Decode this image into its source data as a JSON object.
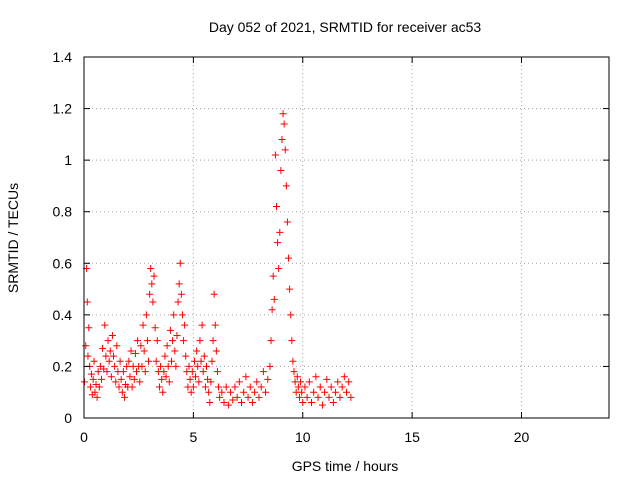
{
  "chart_data": {
    "type": "scatter",
    "title": "Day 052 of 2021, SRMTID for receiver ac53",
    "xlabel": "GPS time / hours",
    "ylabel": "SRMTID / TECUs",
    "xlim": [
      0,
      24
    ],
    "ylim": [
      0,
      1.4
    ],
    "xticks": [
      0,
      5,
      10,
      15,
      20
    ],
    "yticks": [
      0,
      0.2,
      0.4,
      0.6,
      0.8,
      1.0,
      1.2,
      1.4
    ],
    "xtick_labels": [
      "0",
      "5",
      "10",
      "15",
      "20"
    ],
    "ytick_labels": [
      "0",
      "0.2",
      "0.4",
      "0.6",
      "0.8",
      "1",
      "1.2",
      "1.4"
    ],
    "grid": true,
    "marker": "+",
    "color": "#ff0000",
    "series": [
      {
        "name": "ac53",
        "points": [
          [
            0.02,
            0.14
          ],
          [
            0.08,
            0.28
          ],
          [
            0.12,
            0.58
          ],
          [
            0.15,
            0.45
          ],
          [
            0.18,
            0.24
          ],
          [
            0.22,
            0.35
          ],
          [
            0.26,
            0.2
          ],
          [
            0.3,
            0.12
          ],
          [
            0.34,
            0.17
          ],
          [
            0.38,
            0.09
          ],
          [
            0.42,
            0.15
          ],
          [
            0.46,
            0.22
          ],
          [
            0.5,
            0.1
          ],
          [
            0.55,
            0.13
          ],
          [
            0.6,
            0.08
          ],
          [
            0.65,
            0.18
          ],
          [
            0.7,
            0.12
          ],
          [
            0.75,
            0.2
          ],
          [
            0.8,
            0.15
          ],
          [
            0.85,
            0.27
          ],
          [
            0.9,
            0.19
          ],
          [
            0.95,
            0.36
          ],
          [
            1.0,
            0.24
          ],
          [
            1.05,
            0.18
          ],
          [
            1.1,
            0.3
          ],
          [
            1.15,
            0.22
          ],
          [
            1.2,
            0.26
          ],
          [
            1.25,
            0.16
          ],
          [
            1.3,
            0.32
          ],
          [
            1.35,
            0.24
          ],
          [
            1.4,
            0.2
          ],
          [
            1.45,
            0.14
          ],
          [
            1.5,
            0.28
          ],
          [
            1.55,
            0.18
          ],
          [
            1.6,
            0.12
          ],
          [
            1.65,
            0.22
          ],
          [
            1.7,
            0.15
          ],
          [
            1.75,
            0.1
          ],
          [
            1.8,
            0.18
          ],
          [
            1.85,
            0.08
          ],
          [
            1.9,
            0.13
          ],
          [
            1.95,
            0.2
          ],
          [
            2.0,
            0.12
          ],
          [
            2.05,
            0.22
          ],
          [
            2.1,
            0.16
          ],
          [
            2.15,
            0.26
          ],
          [
            2.2,
            0.12
          ],
          [
            2.25,
            0.2
          ],
          [
            2.3,
            0.15
          ],
          [
            2.35,
            0.25
          ],
          [
            2.4,
            0.18
          ],
          [
            2.45,
            0.3
          ],
          [
            2.5,
            0.2
          ],
          [
            2.55,
            0.14
          ],
          [
            2.6,
            0.28
          ],
          [
            2.65,
            0.2
          ],
          [
            2.7,
            0.36
          ],
          [
            2.75,
            0.26
          ],
          [
            2.8,
            0.18
          ],
          [
            2.85,
            0.4
          ],
          [
            2.9,
            0.3
          ],
          [
            2.95,
            0.22
          ],
          [
            3.0,
            0.48
          ],
          [
            3.05,
            0.58
          ],
          [
            3.1,
            0.52
          ],
          [
            3.15,
            0.45
          ],
          [
            3.2,
            0.55
          ],
          [
            3.25,
            0.35
          ],
          [
            3.3,
            0.22
          ],
          [
            3.35,
            0.3
          ],
          [
            3.4,
            0.18
          ],
          [
            3.45,
            0.12
          ],
          [
            3.5,
            0.2
          ],
          [
            3.55,
            0.15
          ],
          [
            3.6,
            0.1
          ],
          [
            3.65,
            0.18
          ],
          [
            3.7,
            0.24
          ],
          [
            3.75,
            0.16
          ],
          [
            3.8,
            0.28
          ],
          [
            3.85,
            0.2
          ],
          [
            3.9,
            0.14
          ],
          [
            3.95,
            0.34
          ],
          [
            4.0,
            0.22
          ],
          [
            4.05,
            0.3
          ],
          [
            4.1,
            0.4
          ],
          [
            4.15,
            0.26
          ],
          [
            4.2,
            0.2
          ],
          [
            4.25,
            0.32
          ],
          [
            4.3,
            0.45
          ],
          [
            4.35,
            0.52
          ],
          [
            4.4,
            0.6
          ],
          [
            4.45,
            0.48
          ],
          [
            4.5,
            0.4
          ],
          [
            4.55,
            0.3
          ],
          [
            4.6,
            0.36
          ],
          [
            4.65,
            0.24
          ],
          [
            4.7,
            0.18
          ],
          [
            4.75,
            0.12
          ],
          [
            4.8,
            0.2
          ],
          [
            4.85,
            0.15
          ],
          [
            4.9,
            0.1
          ],
          [
            4.95,
            0.18
          ],
          [
            5.0,
            0.12
          ],
          [
            5.05,
            0.22
          ],
          [
            5.1,
            0.16
          ],
          [
            5.15,
            0.26
          ],
          [
            5.2,
            0.2
          ],
          [
            5.25,
            0.14
          ],
          [
            5.3,
            0.3
          ],
          [
            5.35,
            0.22
          ],
          [
            5.4,
            0.36
          ],
          [
            5.45,
            0.18
          ],
          [
            5.5,
            0.24
          ],
          [
            5.55,
            0.12
          ],
          [
            5.6,
            0.2
          ],
          [
            5.65,
            0.15
          ],
          [
            5.7,
            0.1
          ],
          [
            5.75,
            0.06
          ],
          [
            5.8,
            0.14
          ],
          [
            5.85,
            0.22
          ],
          [
            5.9,
            0.3
          ],
          [
            5.95,
            0.48
          ],
          [
            6.0,
            0.36
          ],
          [
            6.05,
            0.26
          ],
          [
            6.1,
            0.18
          ],
          [
            6.15,
            0.12
          ],
          [
            6.2,
            0.08
          ],
          [
            6.3,
            0.1
          ],
          [
            6.4,
            0.06
          ],
          [
            6.5,
            0.12
          ],
          [
            6.6,
            0.05
          ],
          [
            6.7,
            0.1
          ],
          [
            6.8,
            0.07
          ],
          [
            6.9,
            0.12
          ],
          [
            7.0,
            0.08
          ],
          [
            7.1,
            0.14
          ],
          [
            7.2,
            0.06
          ],
          [
            7.3,
            0.1
          ],
          [
            7.4,
            0.16
          ],
          [
            7.5,
            0.08
          ],
          [
            7.6,
            0.12
          ],
          [
            7.7,
            0.06
          ],
          [
            7.8,
            0.1
          ],
          [
            7.9,
            0.14
          ],
          [
            8.0,
            0.08
          ],
          [
            8.1,
            0.12
          ],
          [
            8.2,
            0.18
          ],
          [
            8.3,
            0.1
          ],
          [
            8.4,
            0.15
          ],
          [
            8.5,
            0.2
          ],
          [
            8.55,
            0.3
          ],
          [
            8.6,
            0.42
          ],
          [
            8.65,
            0.55
          ],
          [
            8.7,
            0.46
          ],
          [
            8.75,
            1.02
          ],
          [
            8.8,
            0.82
          ],
          [
            8.85,
            0.68
          ],
          [
            8.9,
            0.58
          ],
          [
            8.95,
            0.72
          ],
          [
            9.0,
            0.96
          ],
          [
            9.05,
            1.08
          ],
          [
            9.1,
            1.18
          ],
          [
            9.15,
            1.14
          ],
          [
            9.2,
            1.04
          ],
          [
            9.25,
            0.9
          ],
          [
            9.3,
            0.76
          ],
          [
            9.35,
            0.62
          ],
          [
            9.4,
            0.5
          ],
          [
            9.45,
            0.4
          ],
          [
            9.5,
            0.3
          ],
          [
            9.55,
            0.22
          ],
          [
            9.6,
            0.18
          ],
          [
            9.65,
            0.14
          ],
          [
            9.7,
            0.1
          ],
          [
            9.75,
            0.16
          ],
          [
            9.8,
            0.12
          ],
          [
            9.85,
            0.08
          ],
          [
            9.9,
            0.14
          ],
          [
            9.95,
            0.1
          ],
          [
            10.0,
            0.06
          ],
          [
            10.1,
            0.12
          ],
          [
            10.2,
            0.08
          ],
          [
            10.3,
            0.14
          ],
          [
            10.4,
            0.06
          ],
          [
            10.5,
            0.1
          ],
          [
            10.6,
            0.16
          ],
          [
            10.7,
            0.08
          ],
          [
            10.8,
            0.12
          ],
          [
            10.9,
            0.05
          ],
          [
            11.0,
            0.1
          ],
          [
            11.1,
            0.15
          ],
          [
            11.2,
            0.08
          ],
          [
            11.3,
            0.12
          ],
          [
            11.4,
            0.06
          ],
          [
            11.5,
            0.1
          ],
          [
            11.6,
            0.14
          ],
          [
            11.7,
            0.08
          ],
          [
            11.8,
            0.12
          ],
          [
            11.9,
            0.16
          ],
          [
            12.0,
            0.1
          ],
          [
            12.1,
            0.14
          ],
          [
            12.2,
            0.08
          ]
        ]
      }
    ]
  }
}
